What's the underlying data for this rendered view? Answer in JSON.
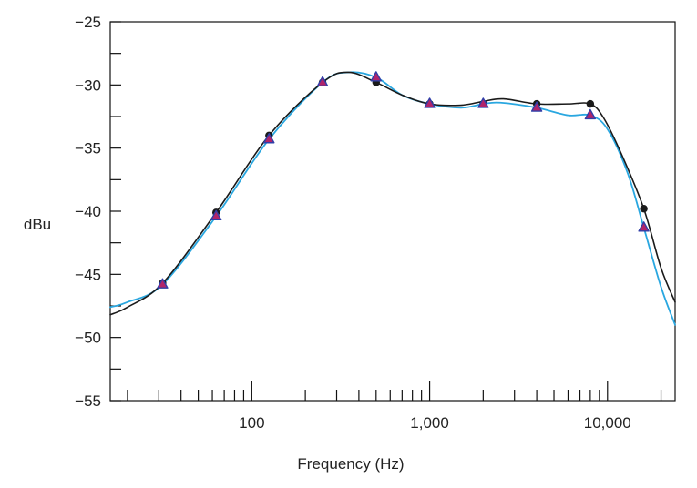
{
  "chart_data": {
    "type": "line",
    "title": "",
    "xlabel": "Frequency (Hz)",
    "ylabel": "dBu",
    "xscale": "log",
    "xlim": [
      16,
      24000
    ],
    "ylim": [
      -55,
      -25
    ],
    "grid": false,
    "legend": "none",
    "x_tick_labels": [
      {
        "value": 100,
        "label": "100"
      },
      {
        "value": 1000,
        "label": "1,000"
      },
      {
        "value": 10000,
        "label": "10,000"
      }
    ],
    "y_ticks": [
      -25,
      -30,
      -35,
      -40,
      -45,
      -50,
      -55
    ],
    "y_tick_labels": [
      "−25",
      "−30",
      "−35",
      "−40",
      "−45",
      "−50",
      "−55"
    ],
    "series": [
      {
        "marker": "circle",
        "color": "#1a1a1a",
        "points": [
          [
            31.5,
            -45.7
          ],
          [
            63,
            -40.1
          ],
          [
            125,
            -34.0
          ],
          [
            250,
            -29.8
          ],
          [
            500,
            -29.8
          ],
          [
            1000,
            -31.5
          ],
          [
            2000,
            -31.5
          ],
          [
            4000,
            -31.5
          ],
          [
            8000,
            -31.5
          ],
          [
            16000,
            -39.8
          ]
        ],
        "curve": [
          [
            16,
            -48.2
          ],
          [
            20,
            -47.6
          ],
          [
            31.5,
            -45.7
          ],
          [
            63,
            -40.1
          ],
          [
            125,
            -34.0
          ],
          [
            250,
            -29.8
          ],
          [
            350,
            -29.0
          ],
          [
            500,
            -29.8
          ],
          [
            700,
            -30.8
          ],
          [
            1000,
            -31.5
          ],
          [
            1500,
            -31.6
          ],
          [
            2000,
            -31.3
          ],
          [
            2600,
            -31.1
          ],
          [
            4000,
            -31.5
          ],
          [
            6000,
            -31.5
          ],
          [
            8000,
            -31.5
          ],
          [
            9500,
            -32.6
          ],
          [
            12000,
            -35.5
          ],
          [
            16000,
            -39.8
          ],
          [
            20000,
            -44.5
          ],
          [
            24000,
            -47.2
          ]
        ]
      },
      {
        "marker": "triangle",
        "color": "#2aa7e0",
        "marker_color": "#b0246a",
        "marker_edge": "#2f3ea8",
        "points": [
          [
            31.5,
            -45.8
          ],
          [
            63,
            -40.4
          ],
          [
            125,
            -34.3
          ],
          [
            250,
            -29.8
          ],
          [
            500,
            -29.4
          ],
          [
            1000,
            -31.5
          ],
          [
            2000,
            -31.5
          ],
          [
            4000,
            -31.8
          ],
          [
            8000,
            -32.4
          ],
          [
            16000,
            -41.3
          ]
        ],
        "curve": [
          [
            16,
            -47.6
          ],
          [
            20,
            -47.2
          ],
          [
            31.5,
            -45.8
          ],
          [
            63,
            -40.4
          ],
          [
            125,
            -34.3
          ],
          [
            250,
            -29.8
          ],
          [
            350,
            -29.0
          ],
          [
            500,
            -29.4
          ],
          [
            700,
            -30.8
          ],
          [
            1000,
            -31.5
          ],
          [
            1500,
            -31.8
          ],
          [
            2000,
            -31.5
          ],
          [
            2500,
            -31.4
          ],
          [
            4000,
            -31.8
          ],
          [
            6000,
            -32.4
          ],
          [
            8000,
            -32.4
          ],
          [
            10000,
            -33.5
          ],
          [
            13000,
            -37.0
          ],
          [
            16000,
            -41.3
          ],
          [
            20000,
            -46.0
          ],
          [
            24000,
            -49.0
          ]
        ]
      }
    ]
  }
}
